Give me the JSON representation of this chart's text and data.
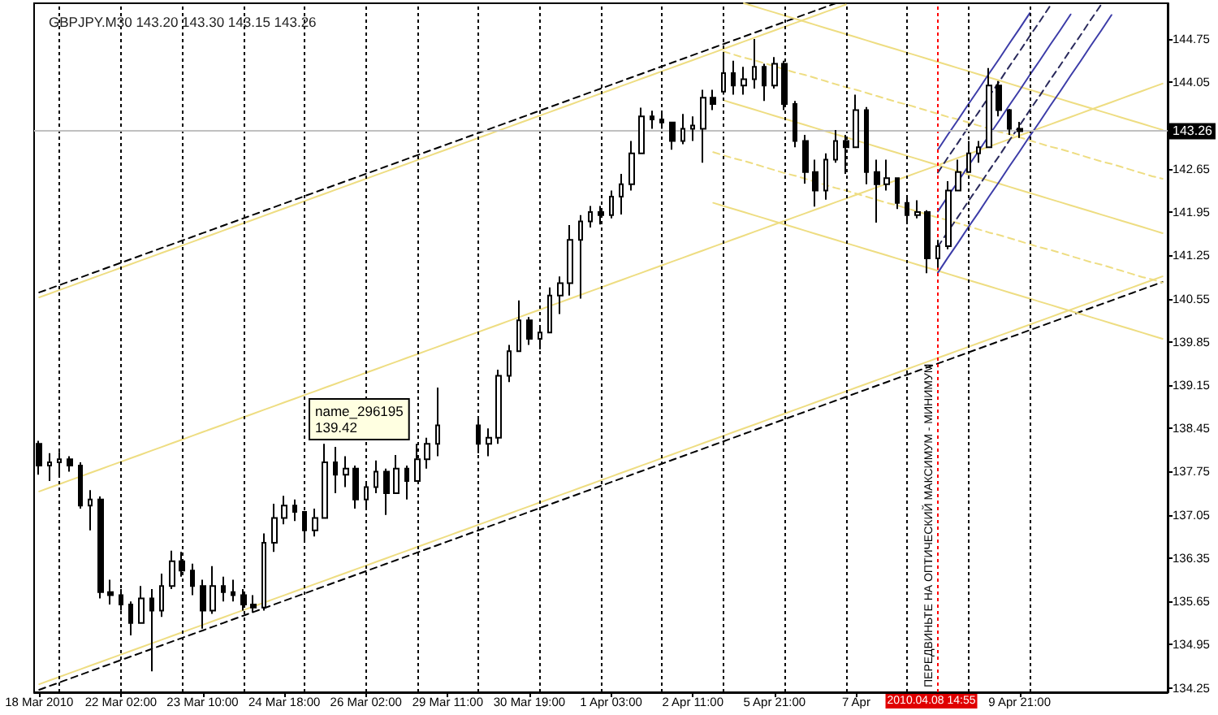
{
  "chart_data": {
    "type": "candlestick",
    "title": "GBPJPY.M30 143.20 143.30 143.15 143.26",
    "color": "#000000",
    "categories": [
      "18 Mar 2010",
      null,
      null,
      null,
      null,
      null,
      null,
      null,
      "22 Mar 02:00",
      null,
      null,
      null,
      null,
      null,
      null,
      null,
      "23 Mar 10:00",
      null,
      null,
      null,
      null,
      null,
      null,
      null,
      "24 Mar 18:00",
      null,
      null,
      null,
      null,
      null,
      null,
      null,
      "26 Mar 02:00",
      null,
      null,
      null,
      null,
      null,
      null,
      null,
      "29 Mar 11:00",
      null,
      null,
      null,
      null,
      null,
      null,
      null,
      "30 Mar 19:00",
      null,
      null,
      null,
      null,
      null,
      null,
      null,
      "1 Apr 03:00",
      null,
      null,
      null,
      null,
      null,
      null,
      null,
      "2 Apr 11:00",
      null,
      null,
      null,
      null,
      null,
      null,
      null,
      "5 Apr 21:00",
      null,
      null,
      null,
      null,
      null,
      null,
      null,
      "7 Apr",
      null,
      null,
      null,
      null,
      null,
      null,
      null,
      null,
      null,
      null,
      null,
      null,
      null,
      null,
      null,
      "9 Apr 21:00",
      null,
      null,
      null,
      null,
      null,
      null,
      null,
      null,
      null,
      null,
      null,
      null,
      null,
      null
    ],
    "ohlc": [
      [
        138.2,
        138.25,
        137.7,
        137.85
      ],
      [
        137.85,
        138.05,
        137.6,
        137.9
      ],
      [
        137.9,
        138.07,
        137.7,
        137.95
      ],
      [
        137.95,
        138.0,
        137.75,
        137.85
      ],
      [
        137.85,
        137.9,
        137.15,
        137.2
      ],
      [
        137.2,
        137.45,
        136.8,
        137.3
      ],
      [
        137.3,
        137.35,
        135.7,
        135.8
      ],
      [
        135.8,
        136.0,
        135.6,
        135.75
      ],
      [
        135.75,
        135.85,
        135.5,
        135.6
      ],
      [
        135.6,
        135.65,
        135.1,
        135.3
      ],
      [
        135.3,
        135.9,
        135.3,
        135.7
      ],
      [
        135.7,
        135.85,
        134.52,
        135.5
      ],
      [
        135.5,
        136.1,
        135.4,
        135.9
      ],
      [
        135.9,
        136.47,
        135.85,
        136.3
      ],
      [
        136.3,
        136.45,
        136.05,
        136.15
      ],
      [
        136.15,
        136.26,
        135.75,
        135.9
      ],
      [
        135.9,
        136.0,
        135.21,
        135.5
      ],
      [
        135.5,
        136.22,
        135.45,
        135.9
      ],
      [
        135.9,
        136.05,
        135.65,
        135.8
      ],
      [
        135.8,
        136.0,
        135.65,
        135.75
      ],
      [
        135.75,
        135.85,
        135.5,
        135.6
      ],
      [
        135.6,
        135.75,
        135.47,
        135.55
      ],
      [
        135.55,
        136.75,
        135.5,
        136.6
      ],
      [
        136.6,
        137.23,
        136.45,
        137.0
      ],
      [
        137.0,
        137.36,
        136.9,
        137.2
      ],
      [
        137.2,
        137.3,
        136.95,
        137.1
      ],
      [
        137.1,
        137.1,
        136.63,
        136.8
      ],
      [
        136.8,
        137.15,
        136.7,
        137.0
      ],
      [
        137.0,
        138.2,
        137.0,
        137.9
      ],
      [
        137.9,
        138.15,
        137.4,
        137.7
      ],
      [
        137.7,
        138.0,
        137.5,
        137.8
      ],
      [
        137.8,
        137.85,
        137.15,
        137.3
      ],
      [
        137.3,
        137.6,
        137.15,
        137.5
      ],
      [
        137.5,
        137.93,
        137.4,
        137.75
      ],
      [
        137.75,
        137.8,
        137.05,
        137.4
      ],
      [
        137.4,
        138.02,
        137.4,
        137.8
      ],
      [
        137.8,
        137.85,
        137.3,
        137.6
      ],
      [
        137.6,
        138.2,
        137.6,
        137.95
      ],
      [
        137.95,
        138.3,
        137.8,
        138.2
      ],
      [
        138.2,
        139.11,
        138.0,
        138.5
      ],
      null,
      null,
      null,
      [
        138.5,
        138.6,
        138.05,
        138.2
      ],
      [
        138.2,
        138.45,
        138.0,
        138.3
      ],
      [
        138.3,
        139.4,
        138.2,
        139.3
      ],
      [
        139.3,
        139.8,
        139.2,
        139.7
      ],
      [
        139.7,
        140.52,
        139.7,
        140.2
      ],
      [
        140.2,
        140.25,
        139.8,
        139.9
      ],
      [
        139.9,
        140.1,
        139.73,
        140.0
      ],
      [
        140.0,
        140.73,
        140.0,
        140.6
      ],
      [
        140.6,
        140.91,
        140.3,
        140.8
      ],
      [
        140.8,
        141.74,
        140.6,
        141.5
      ],
      [
        141.5,
        141.9,
        140.55,
        141.8
      ],
      [
        141.8,
        142.05,
        141.7,
        141.95
      ],
      [
        141.95,
        142.05,
        141.75,
        141.9
      ],
      [
        141.9,
        142.3,
        141.85,
        142.2
      ],
      [
        142.2,
        142.57,
        141.91,
        142.4
      ],
      [
        142.4,
        143.1,
        142.3,
        142.9
      ],
      [
        142.9,
        143.64,
        142.9,
        143.5
      ],
      [
        143.5,
        143.59,
        143.3,
        143.45
      ],
      [
        143.45,
        143.55,
        143.3,
        143.4
      ],
      [
        143.4,
        143.4,
        142.96,
        143.1
      ],
      [
        143.1,
        143.54,
        143.05,
        143.3
      ],
      [
        143.3,
        143.5,
        143.1,
        143.35
      ],
      [
        143.3,
        143.93,
        142.75,
        143.8
      ],
      [
        143.8,
        143.93,
        143.6,
        143.7
      ],
      [
        143.9,
        144.54,
        143.85,
        144.2
      ],
      [
        144.2,
        144.4,
        143.85,
        144.0
      ],
      [
        144.0,
        144.3,
        143.85,
        144.1
      ],
      [
        144.1,
        144.75,
        143.95,
        144.3
      ],
      [
        144.3,
        144.35,
        143.75,
        144.0
      ],
      [
        144.0,
        144.46,
        143.95,
        144.35
      ],
      [
        144.35,
        144.4,
        143.6,
        143.7
      ],
      [
        143.7,
        143.75,
        143.0,
        143.1
      ],
      [
        143.1,
        143.2,
        142.41,
        142.6
      ],
      [
        142.6,
        142.8,
        142.04,
        142.3
      ],
      [
        142.3,
        142.9,
        142.15,
        142.8
      ],
      [
        142.8,
        143.28,
        142.75,
        143.1
      ],
      [
        143.1,
        143.2,
        142.57,
        143.0
      ],
      [
        143.0,
        143.85,
        143.0,
        143.6
      ],
      [
        143.6,
        143.65,
        142.4,
        142.6
      ],
      [
        142.6,
        142.8,
        141.78,
        142.4
      ],
      [
        142.4,
        142.8,
        142.3,
        142.5
      ],
      [
        142.5,
        142.5,
        142.0,
        142.1
      ],
      [
        142.1,
        142.2,
        141.78,
        141.9
      ],
      [
        141.9,
        142.14,
        141.85,
        141.95
      ],
      [
        141.95,
        141.98,
        140.96,
        141.2
      ],
      [
        141.2,
        141.5,
        141.05,
        141.4
      ],
      [
        141.4,
        142.45,
        141.35,
        142.3
      ],
      [
        142.3,
        142.8,
        142.3,
        142.6
      ],
      [
        142.6,
        143.1,
        142.6,
        142.9
      ],
      [
        142.9,
        143.1,
        142.75,
        143.0
      ],
      [
        143.0,
        144.28,
        143.0,
        144.0
      ],
      [
        144.0,
        144.07,
        143.5,
        143.6
      ],
      [
        143.6,
        143.62,
        143.2,
        143.3
      ],
      [
        143.3,
        143.41,
        143.15,
        143.26
      ],
      null,
      null,
      null,
      null,
      null,
      null,
      null,
      null,
      null,
      null,
      null,
      null,
      null,
      null
    ],
    "series": [
      {
        "type": "line",
        "color": "#000000",
        "line_style": "dashed",
        "values": [
          140.65,
          140.71,
          140.77,
          140.83,
          140.89,
          140.95,
          141.01,
          141.07,
          141.13,
          141.19,
          141.25,
          141.31,
          141.37,
          141.43,
          141.49,
          141.55,
          141.61,
          141.67,
          141.73,
          141.79,
          141.85,
          141.91,
          141.97,
          142.03,
          142.09,
          142.15,
          142.21,
          142.27,
          142.33,
          142.39,
          142.45,
          142.51,
          142.57,
          142.63,
          142.69,
          142.75,
          142.81,
          142.87,
          142.93,
          142.99,
          143.05,
          143.11,
          143.17,
          143.23,
          143.29,
          143.35,
          143.41,
          143.47,
          143.53,
          143.59,
          143.65,
          143.71,
          143.77,
          143.83,
          143.89,
          143.95,
          144.01,
          144.07,
          144.13,
          144.19,
          144.25,
          144.31,
          144.37,
          144.43,
          144.49,
          144.55,
          144.61,
          144.67,
          144.73,
          144.79,
          144.85,
          144.91,
          144.97,
          145.03,
          145.09,
          145.15,
          145.21,
          145.27,
          145.33,
          null,
          null,
          null,
          null,
          null,
          null,
          null,
          null,
          null,
          null,
          null,
          null,
          null,
          null,
          null,
          null,
          null,
          null,
          null,
          null,
          null,
          null,
          null,
          null,
          null,
          null,
          null,
          null,
          null,
          null,
          null,
          null
        ]
      },
      {
        "type": "line",
        "color": "#eedd82",
        "line_style": "solid",
        "values": [
          140.57,
          140.63,
          140.69,
          140.75,
          140.81,
          140.87,
          140.93,
          140.99,
          141.05,
          141.11,
          141.17,
          141.23,
          141.29,
          141.35,
          141.41,
          141.47,
          141.53,
          141.59,
          141.65,
          141.71,
          141.77,
          141.83,
          141.89,
          141.95,
          142.01,
          142.07,
          142.13,
          142.19,
          142.25,
          142.31,
          142.37,
          142.43,
          142.49,
          142.55,
          142.61,
          142.67,
          142.73,
          142.79,
          142.85,
          142.91,
          142.97,
          143.03,
          143.09,
          143.15,
          143.21,
          143.27,
          143.33,
          143.39,
          143.45,
          143.51,
          143.57,
          143.63,
          143.69,
          143.75,
          143.81,
          143.87,
          143.93,
          143.99,
          144.05,
          144.11,
          144.17,
          144.23,
          144.29,
          144.35,
          144.41,
          144.47,
          144.53,
          144.59,
          144.65,
          144.71,
          144.77,
          144.83,
          144.89,
          144.95,
          145.01,
          145.07,
          145.13,
          145.19,
          145.25,
          145.31,
          null,
          null,
          null,
          null,
          null,
          null,
          null,
          null,
          null,
          null,
          null,
          null,
          null,
          null,
          null,
          null,
          null,
          null,
          null,
          null,
          null,
          null,
          null,
          null,
          null,
          null,
          null,
          null,
          null,
          null,
          null
        ]
      },
      {
        "type": "line",
        "color": "#eedd82",
        "line_style": "solid",
        "values": [
          137.43,
          137.49,
          137.55,
          137.61,
          137.67,
          137.73,
          137.79,
          137.85,
          137.91,
          137.97,
          138.03,
          138.09,
          138.15,
          138.21,
          138.27,
          138.33,
          138.39,
          138.45,
          138.51,
          138.57,
          138.63,
          138.69,
          138.75,
          138.81,
          138.87,
          138.93,
          138.99,
          139.05,
          139.11,
          139.17,
          139.23,
          139.29,
          139.35,
          139.41,
          139.47,
          139.53,
          139.59,
          139.65,
          139.71,
          139.77,
          139.83,
          139.89,
          139.95,
          140.01,
          140.07,
          140.13,
          140.19,
          140.25,
          140.31,
          140.37,
          140.43,
          140.49,
          140.55,
          140.61,
          140.67,
          140.73,
          140.79,
          140.85,
          140.91,
          140.97,
          141.03,
          141.09,
          141.15,
          141.21,
          141.27,
          141.33,
          141.39,
          141.45,
          141.51,
          141.57,
          141.63,
          141.69,
          141.75,
          141.81,
          141.87,
          141.93,
          141.99,
          142.05,
          142.11,
          142.17,
          142.23,
          142.29,
          142.35,
          142.41,
          142.47,
          142.53,
          142.59,
          142.65,
          142.71,
          142.77,
          142.83,
          142.89,
          142.95,
          143.01,
          143.07,
          143.13,
          143.19,
          143.25,
          143.31,
          143.37,
          143.43,
          143.49,
          143.55,
          143.61,
          143.67,
          143.73,
          143.79,
          143.85,
          143.91,
          143.97,
          144.03
        ]
      },
      {
        "type": "line",
        "color": "#000000",
        "line_style": "dashed",
        "values": [
          134.22,
          134.28,
          134.34,
          134.4,
          134.46,
          134.52,
          134.58,
          134.64,
          134.7,
          134.76,
          134.82,
          134.88,
          134.94,
          135.0,
          135.06,
          135.12,
          135.18,
          135.24,
          135.3,
          135.36,
          135.42,
          135.48,
          135.54,
          135.6,
          135.66,
          135.72,
          135.78,
          135.84,
          135.9,
          135.96,
          136.02,
          136.08,
          136.14,
          136.2,
          136.26,
          136.32,
          136.38,
          136.44,
          136.5,
          136.56,
          136.62,
          136.68,
          136.74,
          136.8,
          136.86,
          136.92,
          136.98,
          137.04,
          137.1,
          137.16,
          137.22,
          137.28,
          137.34,
          137.4,
          137.46,
          137.52,
          137.58,
          137.64,
          137.7,
          137.76,
          137.82,
          137.88,
          137.94,
          138.0,
          138.06,
          138.12,
          138.18,
          138.24,
          138.3,
          138.36,
          138.42,
          138.48,
          138.54,
          138.6,
          138.66,
          138.72,
          138.78,
          138.84,
          138.9,
          138.96,
          139.02,
          139.08,
          139.14,
          139.2,
          139.26,
          139.32,
          139.38,
          139.44,
          139.5,
          139.56,
          139.62,
          139.68,
          139.74,
          139.8,
          139.86,
          139.92,
          139.98,
          140.04,
          140.1,
          140.16,
          140.22,
          140.28,
          140.34,
          140.4,
          140.46,
          140.52,
          140.58,
          140.64,
          140.7,
          140.76,
          140.82
        ]
      },
      {
        "type": "line",
        "color": "#eedd82",
        "line_style": "solid",
        "values": [
          134.31,
          134.37,
          134.43,
          134.49,
          134.55,
          134.61,
          134.67,
          134.73,
          134.79,
          134.85,
          134.91,
          134.97,
          135.03,
          135.09,
          135.15,
          135.21,
          135.27,
          135.33,
          135.39,
          135.45,
          135.51,
          135.57,
          135.63,
          135.69,
          135.75,
          135.81,
          135.87,
          135.93,
          135.99,
          136.05,
          136.11,
          136.17,
          136.23,
          136.29,
          136.35,
          136.41,
          136.47,
          136.53,
          136.59,
          136.65,
          136.71,
          136.77,
          136.83,
          136.89,
          136.95,
          137.01,
          137.07,
          137.13,
          137.19,
          137.25,
          137.31,
          137.37,
          137.43,
          137.49,
          137.55,
          137.61,
          137.67,
          137.73,
          137.79,
          137.85,
          137.91,
          137.97,
          138.03,
          138.09,
          138.15,
          138.21,
          138.27,
          138.33,
          138.39,
          138.45,
          138.51,
          138.57,
          138.63,
          138.69,
          138.75,
          138.81,
          138.87,
          138.93,
          138.99,
          139.05,
          139.11,
          139.17,
          139.23,
          139.29,
          139.35,
          139.41,
          139.47,
          139.53,
          139.59,
          139.65,
          139.71,
          139.77,
          139.83,
          139.89,
          139.95,
          140.01,
          140.07,
          140.13,
          140.19,
          140.25,
          140.31,
          140.37,
          140.43,
          140.49,
          140.55,
          140.61,
          140.67,
          140.73,
          140.79,
          140.85,
          140.91
        ]
      },
      {
        "type": "line",
        "color": "#eedd82",
        "line_style": "solid",
        "values": [
          null,
          null,
          null,
          null,
          null,
          null,
          null,
          null,
          null,
          null,
          null,
          null,
          null,
          null,
          null,
          null,
          null,
          null,
          null,
          null,
          null,
          null,
          null,
          null,
          null,
          null,
          null,
          null,
          null,
          null,
          null,
          null,
          null,
          null,
          null,
          null,
          null,
          null,
          null,
          null,
          null,
          null,
          null,
          null,
          null,
          null,
          null,
          null,
          null,
          null,
          null,
          null,
          null,
          null,
          null,
          null,
          null,
          null,
          null,
          null,
          null,
          null,
          null,
          null,
          null,
          null,
          null,
          null,
          null,
          145.33,
          145.28,
          145.23,
          145.18,
          145.13,
          145.08,
          145.03,
          144.98,
          144.93,
          144.88,
          144.83,
          144.78,
          144.73,
          144.68,
          144.63,
          144.58,
          144.53,
          144.48,
          144.43,
          144.38,
          144.33,
          144.28,
          144.23,
          144.18,
          144.13,
          144.08,
          144.03,
          143.98,
          143.93,
          143.88,
          143.83,
          143.78,
          143.73,
          143.68,
          143.63,
          143.58,
          143.53,
          143.48,
          143.43,
          143.38,
          143.33,
          143.28
        ]
      },
      {
        "type": "line",
        "color": "#eedd82",
        "line_style": "dashed",
        "values": [
          null,
          null,
          null,
          null,
          null,
          null,
          null,
          null,
          null,
          null,
          null,
          null,
          null,
          null,
          null,
          null,
          null,
          null,
          null,
          null,
          null,
          null,
          null,
          null,
          null,
          null,
          null,
          null,
          null,
          null,
          null,
          null,
          null,
          null,
          null,
          null,
          null,
          null,
          null,
          null,
          null,
          null,
          null,
          null,
          null,
          null,
          null,
          null,
          null,
          null,
          null,
          null,
          null,
          null,
          null,
          null,
          null,
          null,
          null,
          null,
          null,
          null,
          null,
          null,
          null,
          null,
          null,
          144.55,
          144.5,
          144.45,
          144.41,
          144.36,
          144.31,
          144.26,
          144.21,
          144.17,
          144.12,
          144.07,
          144.02,
          143.97,
          143.93,
          143.88,
          143.83,
          143.78,
          143.73,
          143.69,
          143.64,
          143.59,
          143.54,
          143.49,
          143.45,
          143.4,
          143.35,
          143.3,
          143.25,
          143.21,
          143.16,
          143.11,
          143.06,
          143.01,
          142.97,
          142.92,
          142.87,
          142.82,
          142.77,
          142.73,
          142.68,
          142.63,
          142.58,
          142.53,
          142.49
        ]
      },
      {
        "type": "line",
        "color": "#eedd82",
        "line_style": "solid",
        "values": [
          null,
          null,
          null,
          null,
          null,
          null,
          null,
          null,
          null,
          null,
          null,
          null,
          null,
          null,
          null,
          null,
          null,
          null,
          null,
          null,
          null,
          null,
          null,
          null,
          null,
          null,
          null,
          null,
          null,
          null,
          null,
          null,
          null,
          null,
          null,
          null,
          null,
          null,
          null,
          null,
          null,
          null,
          null,
          null,
          null,
          null,
          null,
          null,
          null,
          null,
          null,
          null,
          null,
          null,
          null,
          null,
          null,
          null,
          null,
          null,
          null,
          null,
          null,
          null,
          null,
          null,
          null,
          143.76,
          143.71,
          143.66,
          143.61,
          143.56,
          143.51,
          143.46,
          143.41,
          143.36,
          143.31,
          143.26,
          143.21,
          143.16,
          143.11,
          143.06,
          143.01,
          142.96,
          142.91,
          142.86,
          142.81,
          142.76,
          142.71,
          142.66,
          142.61,
          142.56,
          142.51,
          142.46,
          142.41,
          142.36,
          142.31,
          142.26,
          142.21,
          142.16,
          142.11,
          142.06,
          142.01,
          141.96,
          141.91,
          141.86,
          141.81,
          141.76,
          141.71,
          141.66,
          141.61
        ]
      },
      {
        "type": "line",
        "color": "#eedd82",
        "line_style": "dashed",
        "values": [
          null,
          null,
          null,
          null,
          null,
          null,
          null,
          null,
          null,
          null,
          null,
          null,
          null,
          null,
          null,
          null,
          null,
          null,
          null,
          null,
          null,
          null,
          null,
          null,
          null,
          null,
          null,
          null,
          null,
          null,
          null,
          null,
          null,
          null,
          null,
          null,
          null,
          null,
          null,
          null,
          null,
          null,
          null,
          null,
          null,
          null,
          null,
          null,
          null,
          null,
          null,
          null,
          null,
          null,
          null,
          null,
          null,
          null,
          null,
          null,
          null,
          null,
          null,
          null,
          null,
          null,
          142.92,
          142.87,
          142.82,
          142.78,
          142.73,
          142.68,
          142.63,
          142.58,
          142.54,
          142.49,
          142.44,
          142.39,
          142.34,
          142.3,
          142.25,
          142.2,
          142.15,
          142.1,
          142.06,
          142.01,
          141.96,
          141.91,
          141.86,
          141.82,
          141.77,
          141.72,
          141.67,
          141.62,
          141.58,
          141.53,
          141.48,
          141.43,
          141.38,
          141.34,
          141.29,
          141.24,
          141.19,
          141.14,
          141.1,
          141.05,
          141.0,
          140.95,
          140.9,
          140.86,
          140.81
        ]
      },
      {
        "type": "line",
        "color": "#eedd82",
        "line_style": "solid",
        "values": [
          null,
          null,
          null,
          null,
          null,
          null,
          null,
          null,
          null,
          null,
          null,
          null,
          null,
          null,
          null,
          null,
          null,
          null,
          null,
          null,
          null,
          null,
          null,
          null,
          null,
          null,
          null,
          null,
          null,
          null,
          null,
          null,
          null,
          null,
          null,
          null,
          null,
          null,
          null,
          null,
          null,
          null,
          null,
          null,
          null,
          null,
          null,
          null,
          null,
          null,
          null,
          null,
          null,
          null,
          null,
          null,
          null,
          null,
          null,
          null,
          null,
          null,
          null,
          null,
          null,
          null,
          142.1,
          142.05,
          142.0,
          141.95,
          141.9,
          141.85,
          141.8,
          141.75,
          141.7,
          141.65,
          141.6,
          141.55,
          141.5,
          141.45,
          141.4,
          141.35,
          141.3,
          141.25,
          141.2,
          141.15,
          141.1,
          141.05,
          141.0,
          140.95,
          140.9,
          140.85,
          140.8,
          140.75,
          140.7,
          140.65,
          140.6,
          140.55,
          140.5,
          140.45,
          140.4,
          140.35,
          140.3,
          140.25,
          140.2,
          140.15,
          140.1,
          140.05,
          140.0,
          139.95,
          139.9
        ]
      },
      {
        "type": "line",
        "color": "#3c3ca8",
        "line_style": "solid",
        "values": [
          null,
          null,
          null,
          null,
          null,
          null,
          null,
          null,
          null,
          null,
          null,
          null,
          null,
          null,
          null,
          null,
          null,
          null,
          null,
          null,
          null,
          null,
          null,
          null,
          null,
          null,
          null,
          null,
          null,
          null,
          null,
          null,
          null,
          null,
          null,
          null,
          null,
          null,
          null,
          null,
          null,
          null,
          null,
          null,
          null,
          null,
          null,
          null,
          null,
          null,
          null,
          null,
          null,
          null,
          null,
          null,
          null,
          null,
          null,
          null,
          null,
          null,
          null,
          null,
          null,
          null,
          null,
          null,
          null,
          null,
          null,
          null,
          null,
          null,
          null,
          null,
          null,
          null,
          null,
          null,
          null,
          null,
          null,
          null,
          null,
          null,
          null,
          null,
          142.96,
          143.21,
          143.45,
          143.7,
          143.94,
          144.19,
          144.43,
          144.68,
          144.92,
          145.17,
          null,
          null,
          null,
          null,
          null,
          null,
          null,
          null,
          null,
          null,
          null,
          null,
          null
        ]
      },
      {
        "type": "line",
        "color": "#2a2a5c",
        "line_style": "dashed",
        "values": [
          null,
          null,
          null,
          null,
          null,
          null,
          null,
          null,
          null,
          null,
          null,
          null,
          null,
          null,
          null,
          null,
          null,
          null,
          null,
          null,
          null,
          null,
          null,
          null,
          null,
          null,
          null,
          null,
          null,
          null,
          null,
          null,
          null,
          null,
          null,
          null,
          null,
          null,
          null,
          null,
          null,
          null,
          null,
          null,
          null,
          null,
          null,
          null,
          null,
          null,
          null,
          null,
          null,
          null,
          null,
          null,
          null,
          null,
          null,
          null,
          null,
          null,
          null,
          null,
          null,
          null,
          null,
          null,
          null,
          null,
          null,
          null,
          null,
          null,
          null,
          null,
          null,
          null,
          null,
          null,
          null,
          null,
          null,
          null,
          null,
          null,
          null,
          null,
          142.59,
          142.84,
          143.08,
          143.33,
          143.57,
          143.82,
          144.06,
          144.31,
          144.55,
          144.8,
          145.04,
          145.29,
          null,
          null,
          null,
          null,
          null,
          null,
          null,
          null,
          null,
          null,
          null
        ]
      },
      {
        "type": "line",
        "color": "#3c3ca8",
        "line_style": "solid",
        "values": [
          null,
          null,
          null,
          null,
          null,
          null,
          null,
          null,
          null,
          null,
          null,
          null,
          null,
          null,
          null,
          null,
          null,
          null,
          null,
          null,
          null,
          null,
          null,
          null,
          null,
          null,
          null,
          null,
          null,
          null,
          null,
          null,
          null,
          null,
          null,
          null,
          null,
          null,
          null,
          null,
          null,
          null,
          null,
          null,
          null,
          null,
          null,
          null,
          null,
          null,
          null,
          null,
          null,
          null,
          null,
          null,
          null,
          null,
          null,
          null,
          null,
          null,
          null,
          null,
          null,
          null,
          null,
          null,
          null,
          null,
          null,
          null,
          null,
          null,
          null,
          null,
          null,
          null,
          null,
          null,
          null,
          null,
          null,
          null,
          null,
          null,
          null,
          null,
          141.96,
          142.21,
          142.45,
          142.7,
          142.94,
          143.19,
          143.43,
          143.68,
          143.92,
          144.17,
          144.41,
          144.66,
          144.9,
          145.15,
          null,
          null,
          null,
          null,
          null,
          null,
          null,
          null,
          null
        ]
      },
      {
        "type": "line",
        "color": "#2a2a5c",
        "line_style": "dashed",
        "values": [
          null,
          null,
          null,
          null,
          null,
          null,
          null,
          null,
          null,
          null,
          null,
          null,
          null,
          null,
          null,
          null,
          null,
          null,
          null,
          null,
          null,
          null,
          null,
          null,
          null,
          null,
          null,
          null,
          null,
          null,
          null,
          null,
          null,
          null,
          null,
          null,
          null,
          null,
          null,
          null,
          null,
          null,
          null,
          null,
          null,
          null,
          null,
          null,
          null,
          null,
          null,
          null,
          null,
          null,
          null,
          null,
          null,
          null,
          null,
          null,
          null,
          null,
          null,
          null,
          null,
          null,
          null,
          null,
          null,
          null,
          null,
          null,
          null,
          null,
          null,
          null,
          null,
          null,
          null,
          null,
          null,
          null,
          null,
          null,
          null,
          null,
          null,
          null,
          141.39,
          141.64,
          141.88,
          142.13,
          142.37,
          142.62,
          142.86,
          143.11,
          143.35,
          143.6,
          143.84,
          144.09,
          144.33,
          144.58,
          144.82,
          145.07,
          145.31,
          null,
          null,
          null,
          null,
          null,
          null
        ]
      },
      {
        "type": "line",
        "color": "#3c3ca8",
        "line_style": "solid",
        "values": [
          null,
          null,
          null,
          null,
          null,
          null,
          null,
          null,
          null,
          null,
          null,
          null,
          null,
          null,
          null,
          null,
          null,
          null,
          null,
          null,
          null,
          null,
          null,
          null,
          null,
          null,
          null,
          null,
          null,
          null,
          null,
          null,
          null,
          null,
          null,
          null,
          null,
          null,
          null,
          null,
          null,
          null,
          null,
          null,
          null,
          null,
          null,
          null,
          null,
          null,
          null,
          null,
          null,
          null,
          null,
          null,
          null,
          null,
          null,
          null,
          null,
          null,
          null,
          null,
          null,
          null,
          null,
          null,
          null,
          null,
          null,
          null,
          null,
          null,
          null,
          null,
          null,
          null,
          null,
          null,
          null,
          null,
          null,
          null,
          null,
          null,
          null,
          null,
          140.97,
          141.22,
          141.46,
          141.71,
          141.95,
          142.2,
          142.44,
          142.69,
          142.93,
          143.18,
          143.42,
          143.67,
          143.91,
          144.16,
          144.4,
          144.65,
          144.89,
          145.14,
          null,
          null,
          null,
          null,
          null
        ]
      }
    ],
    "ylim": [
      134.18,
      145.33
    ],
    "yticks": [
      134.25,
      134.95,
      135.65,
      136.35,
      137.05,
      137.75,
      138.45,
      139.15,
      139.85,
      140.55,
      141.25,
      141.95,
      142.65,
      {
        "value": 143.35,
        "label": null
      },
      144.05,
      144.75
    ],
    "grid": "x",
    "ref_lines": [
      {
        "axis": "y",
        "value": 143.26,
        "label": "143.26",
        "color": "#c0c0c0",
        "line_style": "solid"
      }
    ],
    "annotations": [
      "2010.04.08 14:55",
      "ПЕРЕДВИНЬТЕ НА ОПТИЧЕСКИЙ МАКСИМУМ - МИНИМУМ",
      "name_296195\n139.42"
    ]
  }
}
